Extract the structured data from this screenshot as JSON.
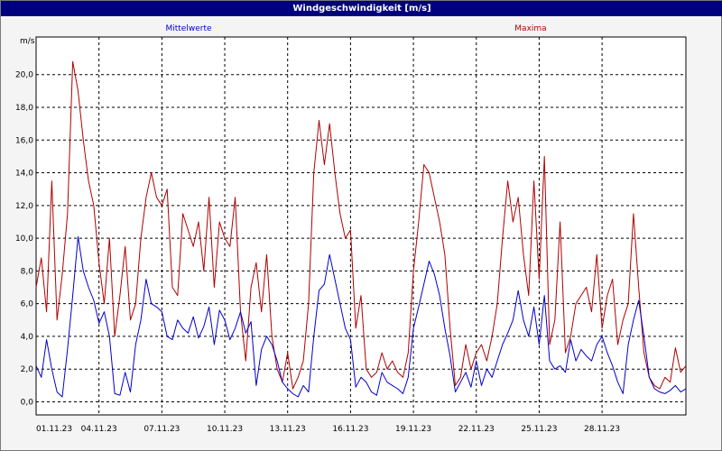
{
  "window": {
    "title": "Windgeschwindigkeit [m/s]"
  },
  "colors": {
    "mean": "#0000cc",
    "max": "#b00000",
    "grid": "#000000",
    "titlebar": "#00007f"
  },
  "chart_data": {
    "type": "line",
    "title": "Windgeschwindigkeit [m/s]",
    "unit_label": "m/s",
    "ylim": [
      -0.8,
      22.3
    ],
    "yticks": [
      0,
      2,
      4,
      6,
      8,
      10,
      12,
      14,
      16,
      18,
      20
    ],
    "ytick_labels": [
      "0,0",
      "2,0",
      "4,0",
      "6,0",
      "8,0",
      "10,0",
      "12,0",
      "14,0",
      "16,0",
      "18,0",
      "20,0"
    ],
    "xlim": [
      1,
      32
    ],
    "xticks": [
      1,
      4,
      7,
      10,
      13,
      16,
      19,
      22,
      25,
      28
    ],
    "xtick_labels": [
      "01.11.23",
      "04.11.23",
      "07.11.23",
      "10.11.23",
      "13.11.23",
      "16.11.23",
      "19.11.23",
      "22.11.23",
      "25.11.23",
      "28.11.23"
    ],
    "grid": true,
    "legend_placement": "top",
    "series": [
      {
        "name": "Mittelwerte",
        "color": "#0000cc",
        "x": [
          1.0,
          1.25,
          1.5,
          1.75,
          2.0,
          2.25,
          2.5,
          2.75,
          3.0,
          3.25,
          3.5,
          3.75,
          4.0,
          4.25,
          4.5,
          4.75,
          5.0,
          5.25,
          5.5,
          5.75,
          6.0,
          6.25,
          6.5,
          6.75,
          7.0,
          7.25,
          7.5,
          7.75,
          8.0,
          8.25,
          8.5,
          8.75,
          9.0,
          9.25,
          9.5,
          9.75,
          10.0,
          10.25,
          10.5,
          10.75,
          11.0,
          11.25,
          11.5,
          11.75,
          12.0,
          12.25,
          12.5,
          12.75,
          13.0,
          13.25,
          13.5,
          13.75,
          14.0,
          14.25,
          14.5,
          14.75,
          15.0,
          15.25,
          15.5,
          15.75,
          16.0,
          16.25,
          16.5,
          16.75,
          17.0,
          17.25,
          17.5,
          17.75,
          18.0,
          18.25,
          18.5,
          18.75,
          19.0,
          19.25,
          19.5,
          19.75,
          20.0,
          20.25,
          20.5,
          20.75,
          21.0,
          21.25,
          21.5,
          21.75,
          22.0,
          22.25,
          22.5,
          22.75,
          23.0,
          23.25,
          23.5,
          23.75,
          24.0,
          24.25,
          24.5,
          24.75,
          25.0,
          25.25,
          25.5,
          25.75,
          26.0,
          26.25,
          26.5,
          26.75,
          27.0,
          27.25,
          27.5,
          27.75,
          28.0,
          28.25,
          28.5,
          28.75,
          29.0,
          29.25,
          29.5,
          29.75,
          30.0,
          30.25,
          30.5,
          30.75,
          31.0,
          31.25,
          31.5,
          31.75,
          32.0
        ],
        "values": [
          2.2,
          1.5,
          3.8,
          2.0,
          0.6,
          0.3,
          3.2,
          6.5,
          10.1,
          8.0,
          7.0,
          6.2,
          4.8,
          5.5,
          4.0,
          0.5,
          0.4,
          1.8,
          0.6,
          3.5,
          5.0,
          7.5,
          6.0,
          5.8,
          5.5,
          4.0,
          3.8,
          5.0,
          4.5,
          4.2,
          5.2,
          3.9,
          4.6,
          5.8,
          3.5,
          5.6,
          5.0,
          3.8,
          4.5,
          5.5,
          4.2,
          4.9,
          1.0,
          3.2,
          4.0,
          3.5,
          2.5,
          1.2,
          0.8,
          0.5,
          0.3,
          1.0,
          0.6,
          4.0,
          6.8,
          7.2,
          9.0,
          7.5,
          6.0,
          4.5,
          3.8,
          0.9,
          1.5,
          1.2,
          0.6,
          0.4,
          1.8,
          1.2,
          1.0,
          0.8,
          0.5,
          1.5,
          4.5,
          5.8,
          7.2,
          8.6,
          7.8,
          6.5,
          4.5,
          2.8,
          0.6,
          1.2,
          1.8,
          0.9,
          2.5,
          1.0,
          2.0,
          1.5,
          2.5,
          3.5,
          4.2,
          5.0,
          6.8,
          5.0,
          4.0,
          5.8,
          3.5,
          6.5,
          2.5,
          2.0,
          2.2,
          1.8,
          3.8,
          2.5,
          3.2,
          2.8,
          2.5,
          3.5,
          4.0,
          3.0,
          2.2,
          1.2,
          0.5,
          3.5,
          5.0,
          6.2,
          4.0,
          1.5,
          0.8,
          0.6,
          0.5,
          0.7,
          1.0,
          0.6,
          0.8
        ]
      },
      {
        "name": "Maxima",
        "color": "#b00000",
        "x": [
          1.0,
          1.25,
          1.5,
          1.75,
          2.0,
          2.25,
          2.5,
          2.75,
          3.0,
          3.25,
          3.5,
          3.75,
          4.0,
          4.25,
          4.5,
          4.75,
          5.0,
          5.25,
          5.5,
          5.75,
          6.0,
          6.25,
          6.5,
          6.75,
          7.0,
          7.25,
          7.5,
          7.75,
          8.0,
          8.25,
          8.5,
          8.75,
          9.0,
          9.25,
          9.5,
          9.75,
          10.0,
          10.25,
          10.5,
          10.75,
          11.0,
          11.25,
          11.5,
          11.75,
          12.0,
          12.25,
          12.5,
          12.75,
          13.0,
          13.25,
          13.5,
          13.75,
          14.0,
          14.25,
          14.5,
          14.75,
          15.0,
          15.25,
          15.5,
          15.75,
          16.0,
          16.25,
          16.5,
          16.75,
          17.0,
          17.25,
          17.5,
          17.75,
          18.0,
          18.25,
          18.5,
          18.75,
          19.0,
          19.25,
          19.5,
          19.75,
          20.0,
          20.25,
          20.5,
          20.75,
          21.0,
          21.25,
          21.5,
          21.75,
          22.0,
          22.25,
          22.5,
          22.75,
          23.0,
          23.25,
          23.5,
          23.75,
          24.0,
          24.25,
          24.5,
          24.75,
          25.0,
          25.25,
          25.5,
          25.75,
          26.0,
          26.25,
          26.5,
          26.75,
          27.0,
          27.25,
          27.5,
          27.75,
          28.0,
          28.25,
          28.5,
          28.75,
          29.0,
          29.25,
          29.5,
          29.75,
          30.0,
          30.25,
          30.5,
          30.75,
          31.0,
          31.25,
          31.5,
          31.75,
          32.0
        ],
        "values": [
          7.0,
          8.8,
          5.5,
          13.5,
          5.0,
          7.8,
          11.5,
          20.8,
          19.0,
          16.0,
          13.5,
          12.0,
          8.5,
          6.0,
          10.0,
          4.0,
          6.5,
          9.5,
          5.0,
          6.0,
          10.0,
          12.5,
          14.0,
          12.5,
          12.0,
          13.0,
          7.0,
          6.5,
          11.5,
          10.5,
          9.5,
          11.0,
          8.0,
          12.5,
          7.0,
          11.0,
          10.0,
          9.5,
          12.5,
          5.5,
          2.5,
          7.0,
          8.5,
          5.5,
          9.0,
          4.0,
          2.0,
          1.2,
          3.0,
          0.8,
          1.5,
          2.5,
          6.0,
          14.0,
          17.2,
          14.5,
          17.0,
          14.0,
          11.5,
          10.0,
          10.5,
          4.5,
          6.5,
          2.0,
          1.5,
          1.8,
          3.0,
          2.0,
          2.5,
          1.8,
          1.5,
          3.0,
          8.0,
          11.0,
          14.5,
          14.0,
          12.5,
          11.0,
          9.0,
          4.5,
          1.0,
          1.5,
          3.5,
          2.0,
          3.0,
          3.5,
          2.5,
          4.0,
          6.0,
          10.0,
          13.5,
          11.0,
          12.5,
          9.0,
          6.5,
          13.5,
          7.5,
          15.0,
          3.5,
          5.0,
          11.0,
          3.0,
          4.0,
          6.0,
          6.5,
          7.0,
          5.5,
          9.0,
          4.5,
          6.5,
          7.5,
          3.5,
          5.0,
          6.0,
          11.5,
          7.0,
          3.0,
          1.5,
          1.0,
          0.8,
          1.5,
          1.2,
          3.3,
          1.8,
          2.2
        ]
      }
    ]
  }
}
